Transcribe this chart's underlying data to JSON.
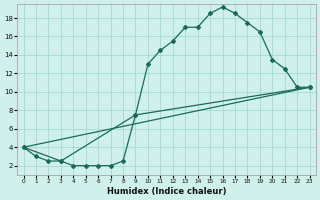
{
  "xlabel": "Humidex (Indice chaleur)",
  "background_color": "#cff0eb",
  "grid_color": "#aaddd7",
  "line_color": "#1a6b5a",
  "xlim": [
    -0.5,
    23.5
  ],
  "ylim": [
    1,
    19.5
  ],
  "xticks": [
    0,
    1,
    2,
    3,
    4,
    5,
    6,
    7,
    8,
    9,
    10,
    11,
    12,
    13,
    14,
    15,
    16,
    17,
    18,
    19,
    20,
    21,
    22,
    23
  ],
  "yticks": [
    2,
    4,
    6,
    8,
    10,
    12,
    14,
    16,
    18
  ],
  "curve_x": [
    0,
    1,
    2,
    3,
    4,
    5,
    6,
    7,
    8,
    9,
    10,
    11,
    12,
    13,
    14,
    15,
    16,
    17,
    18,
    19,
    20,
    21,
    22,
    23
  ],
  "curve_y": [
    4,
    3,
    2.5,
    2.5,
    2,
    2,
    2,
    2,
    2.5,
    7.5,
    13,
    14.5,
    15.5,
    17,
    17,
    18.5,
    19.2,
    18.5,
    17.5,
    16.5,
    13.5,
    12.5,
    10.5,
    10.5
  ],
  "mid_line_x": [
    0,
    3,
    9,
    23
  ],
  "mid_line_y": [
    4,
    2.5,
    7.5,
    10.5
  ],
  "bot_line_x": [
    0,
    23
  ],
  "bot_line_y": [
    4,
    10.5
  ]
}
